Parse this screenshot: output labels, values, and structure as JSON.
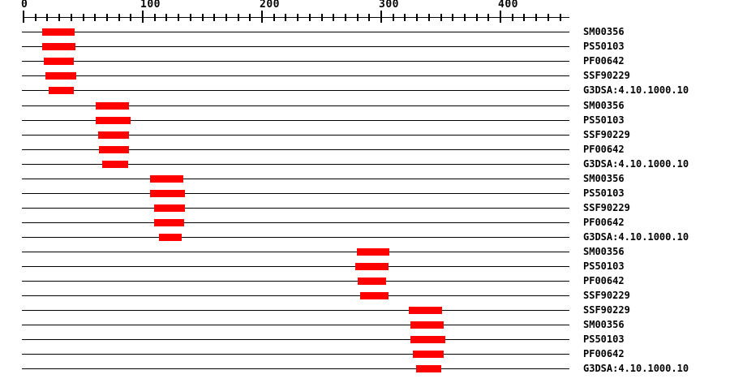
{
  "page": {
    "background_color": "#ffffff",
    "line_color": "#000000",
    "text_color": "#000000"
  },
  "chart_data": {
    "type": "bar",
    "subtype": "protein-signature-match-spans",
    "title": "",
    "xlabel": "",
    "ylabel": "",
    "legend": "none",
    "grid": "off",
    "axis": {
      "position": "top",
      "min": 0,
      "max": 458,
      "minor_tick_interval": 10,
      "last_minor_tick": 450,
      "major_tick_interval": 100,
      "major_tick_values": [
        0,
        100,
        200,
        300,
        400
      ],
      "major_tick_labels": [
        "0",
        "100",
        "200",
        "300",
        "400"
      ]
    },
    "bar_color": "#ff0000",
    "rows": [
      {
        "label": "SM00356",
        "start": 16,
        "end": 43
      },
      {
        "label": "PS50103",
        "start": 16,
        "end": 44
      },
      {
        "label": "PF00642",
        "start": 18,
        "end": 43
      },
      {
        "label": "SSF90229",
        "start": 19,
        "end": 45
      },
      {
        "label": "G3DSA:4.10.1000.10",
        "start": 22,
        "end": 43
      },
      {
        "label": "SM00356",
        "start": 61,
        "end": 89
      },
      {
        "label": "PS50103",
        "start": 61,
        "end": 90
      },
      {
        "label": "SSF90229",
        "start": 63,
        "end": 89
      },
      {
        "label": "PF00642",
        "start": 64,
        "end": 89
      },
      {
        "label": "G3DSA:4.10.1000.10",
        "start": 67,
        "end": 89
      },
      {
        "label": "SM00356",
        "start": 107,
        "end": 135
      },
      {
        "label": "PS50103",
        "start": 107,
        "end": 136
      },
      {
        "label": "SSF90229",
        "start": 110,
        "end": 136
      },
      {
        "label": "PF00642",
        "start": 110,
        "end": 135
      },
      {
        "label": "G3DSA:4.10.1000.10",
        "start": 114,
        "end": 133
      },
      {
        "label": "SM00356",
        "start": 280,
        "end": 307
      },
      {
        "label": "PS50103",
        "start": 279,
        "end": 307
      },
      {
        "label": "PF00642",
        "start": 281,
        "end": 305
      },
      {
        "label": "SSF90229",
        "start": 283,
        "end": 307
      },
      {
        "label": "SSF90229",
        "start": 324,
        "end": 352
      },
      {
        "label": "SM00356",
        "start": 325,
        "end": 353
      },
      {
        "label": "PS50103",
        "start": 325,
        "end": 354
      },
      {
        "label": "PF00642",
        "start": 327,
        "end": 353
      },
      {
        "label": "G3DSA:4.10.1000.10",
        "start": 330,
        "end": 351
      }
    ]
  }
}
